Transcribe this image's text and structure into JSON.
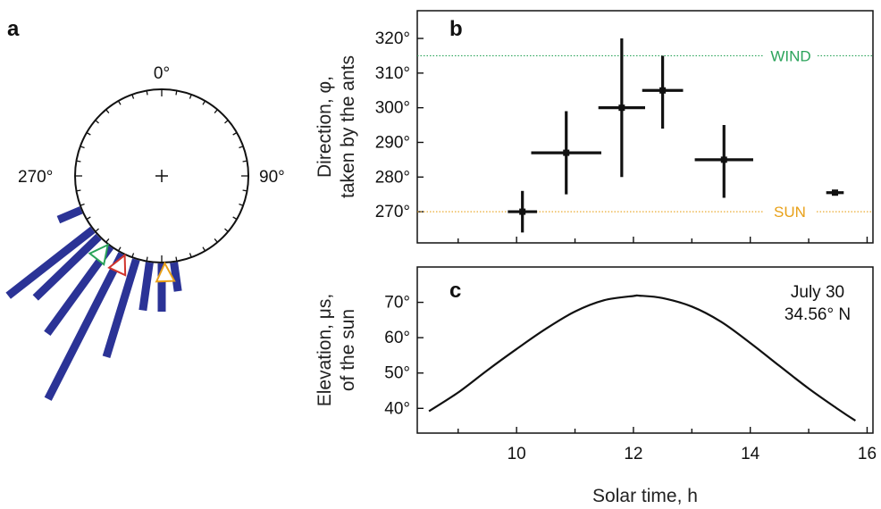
{
  "panels": {
    "a": "a",
    "b": "b",
    "c": "c"
  },
  "circle": {
    "labels": {
      "top": "0°",
      "right": "90°",
      "left": "270°"
    },
    "bars": [
      {
        "angle_deg": 247,
        "length": 0.23
      },
      {
        "angle_deg": 232,
        "length": 1.0
      },
      {
        "angle_deg": 226,
        "length": 0.82
      },
      {
        "angle_deg": 216,
        "length": 1.0
      },
      {
        "angle_deg": 207,
        "length": 1.52
      },
      {
        "angle_deg": 197,
        "length": 0.95
      },
      {
        "angle_deg": 188,
        "length": 0.45
      },
      {
        "angle_deg": 180,
        "length": 0.45
      },
      {
        "angle_deg": 172,
        "length": 0.27
      }
    ],
    "markers": [
      {
        "name": "wind",
        "angle_deg": 218,
        "color": "#2aa35a"
      },
      {
        "name": "other",
        "angle_deg": 205,
        "color": "#d0342c"
      },
      {
        "name": "sun",
        "angle_deg": 178,
        "color": "#e8a018"
      }
    ],
    "bar_color": "#2b3396"
  },
  "chart_data": [
    {
      "type": "scatter",
      "panel": "b",
      "ylabel_lines": [
        "Direction, φ,",
        "taken by the ants"
      ],
      "xlim": [
        8.3,
        16.1
      ],
      "ylim": [
        261,
        328
      ],
      "yticks": [
        270,
        280,
        290,
        300,
        310,
        320
      ],
      "ytick_labels": [
        "270°",
        "280°",
        "290°",
        "300°",
        "310°",
        "320°"
      ],
      "points": [
        {
          "x": 10.1,
          "y": 270,
          "xerr": 0.25,
          "yerr": [
            6,
            6
          ]
        },
        {
          "x": 10.85,
          "y": 287,
          "xerr": 0.6,
          "yerr": [
            12,
            12
          ]
        },
        {
          "x": 11.8,
          "y": 300,
          "xerr": 0.4,
          "yerr": [
            20,
            20
          ]
        },
        {
          "x": 12.5,
          "y": 305,
          "xerr": 0.35,
          "yerr": [
            11,
            10
          ]
        },
        {
          "x": 13.55,
          "y": 285,
          "xerr": 0.5,
          "yerr": [
            11,
            10
          ]
        },
        {
          "x": 15.45,
          "y": 275.5,
          "xerr": 0.15,
          "yerr": [
            0.5,
            0.5
          ]
        }
      ],
      "reference_lines": [
        {
          "label": "WIND",
          "y": 315,
          "color": "#2aa35a"
        },
        {
          "label": "SUN",
          "y": 270,
          "color": "#e8a018"
        }
      ]
    },
    {
      "type": "line",
      "panel": "c",
      "ylabel_lines": [
        "Elevation, μs,",
        "of the sun"
      ],
      "xlabel": "Solar time, h",
      "xlim": [
        8.3,
        16.1
      ],
      "ylim": [
        33,
        80
      ],
      "xticks": [
        10,
        12,
        14,
        16
      ],
      "xtick_labels": [
        "10",
        "12",
        "14",
        "16"
      ],
      "minor_xticks": [
        9,
        11,
        13,
        15
      ],
      "yticks": [
        40,
        50,
        60,
        70
      ],
      "ytick_labels": [
        "40°",
        "50°",
        "60°",
        "70°"
      ],
      "x": [
        8.5,
        9.0,
        9.5,
        10.0,
        10.5,
        11.0,
        11.5,
        12.0,
        12.1,
        12.5,
        13.0,
        13.5,
        14.0,
        14.5,
        15.0,
        15.5,
        15.8
      ],
      "y": [
        39.2,
        44.5,
        50.8,
        56.8,
        62.5,
        67.4,
        70.6,
        71.8,
        71.9,
        71.2,
        68.8,
        64.5,
        58.5,
        52.0,
        45.6,
        39.8,
        36.5
      ],
      "annotation": [
        "July 30",
        "34.56° N"
      ]
    }
  ]
}
